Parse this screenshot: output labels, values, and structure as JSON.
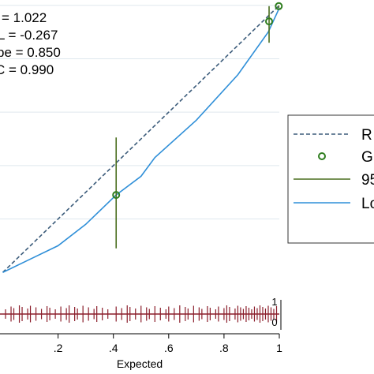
{
  "chart_data": {
    "type": "line",
    "xlabel": "Expected",
    "ylabel": "",
    "xlim": [
      -0.01,
      1.0
    ],
    "ylim": [
      -0.02,
      1.02
    ],
    "x_ticks": [
      {
        "value": 0.2,
        "label": ".2"
      },
      {
        "value": 0.4,
        "label": ".4"
      },
      {
        "value": 0.6,
        "label": ".6"
      },
      {
        "value": 0.8,
        "label": ".8"
      },
      {
        "value": 1.0,
        "label": "1"
      }
    ],
    "grid": true,
    "stats": [
      {
        "label": "= 1.022"
      },
      {
        "label": "L = -0.267"
      },
      {
        "label": "pe = 0.850"
      },
      {
        "label": "C = 0.990"
      }
    ],
    "series": [
      {
        "name": "R",
        "kind": "reference",
        "style": "dashed",
        "color": "#3b5b7a",
        "x": [
          0.0,
          1.0
        ],
        "y": [
          0.0,
          1.0
        ]
      },
      {
        "name": "G",
        "kind": "points",
        "style": "circle",
        "color": "#2e7d1e",
        "x": [
          0.41,
          0.963,
          0.998
        ],
        "y": [
          0.29,
          0.94,
          0.997
        ],
        "ci_low": [
          0.09,
          0.86,
          0.99
        ],
        "ci_high": [
          0.505,
          0.997,
          1.0
        ]
      },
      {
        "name": "95",
        "kind": "ci",
        "style": "solid",
        "color": "#4a6e1f"
      },
      {
        "name": "Lo",
        "kind": "smoother",
        "style": "solid",
        "color": "#2f8fd8",
        "x": [
          0.0,
          0.1,
          0.2,
          0.3,
          0.41,
          0.5,
          0.55,
          0.7,
          0.85,
          0.96,
          1.0
        ],
        "y": [
          0.0,
          0.05,
          0.1,
          0.18,
          0.29,
          0.36,
          0.43,
          0.57,
          0.74,
          0.9,
          0.99
        ]
      }
    ],
    "rug": {
      "color": "#8b1e2b",
      "labels": [
        "1",
        "0"
      ],
      "x": [
        0.01,
        0.03,
        0.04,
        0.06,
        0.07,
        0.09,
        0.1,
        0.12,
        0.14,
        0.16,
        0.17,
        0.19,
        0.21,
        0.23,
        0.24,
        0.26,
        0.27,
        0.29,
        0.31,
        0.33,
        0.34,
        0.36,
        0.38,
        0.41,
        0.43,
        0.45,
        0.46,
        0.48,
        0.5,
        0.52,
        0.53,
        0.55,
        0.57,
        0.59,
        0.6,
        0.62,
        0.64,
        0.66,
        0.67,
        0.69,
        0.71,
        0.72,
        0.74,
        0.75,
        0.77,
        0.78,
        0.8,
        0.81,
        0.82,
        0.84,
        0.85,
        0.86,
        0.87,
        0.88,
        0.89,
        0.9,
        0.91,
        0.92,
        0.93,
        0.94,
        0.95,
        0.96,
        0.97,
        0.98,
        0.99
      ]
    }
  }
}
